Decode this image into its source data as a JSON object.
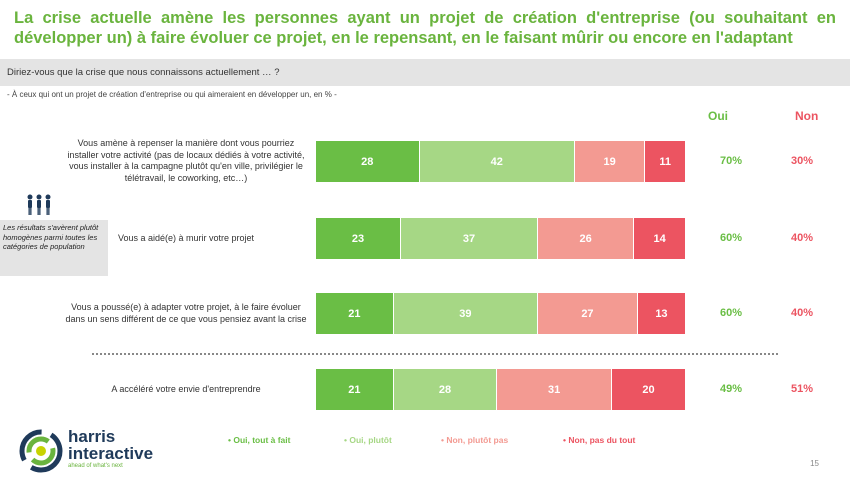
{
  "header": {
    "title": "La crise actuelle amène les personnes ayant un projet de création d'entreprise (ou souhaitant en développer un) à faire évoluer ce projet, en le repensant, en le faisant mûrir ou encore en l'adaptant",
    "question": "Diriez-vous que la crise que nous connaissons actuellement … ?",
    "subtitle": "- À ceux qui ont un projet de création d'entreprise ou qui aimeraient en développer un, en % -"
  },
  "columns": {
    "oui": "Oui",
    "non": "Non"
  },
  "side_note": "Les résultats s'avèrent plutôt homogènes parmi toutes les catégories de population",
  "colors": {
    "oui_tout": "#6abe45",
    "oui_plutot": "#a6d785",
    "non_plutot": "#f39a92",
    "non_tout": "#ec5461",
    "oui_text": "#6abe45",
    "non_text": "#ec5461"
  },
  "chart_data": {
    "type": "bar",
    "stacked": true,
    "orientation": "horizontal",
    "categories": [
      "Vous amène à repenser la manière dont vous pourriez installer votre activité (pas de locaux dédiés à votre activité, vous installer à la campagne plutôt qu'en ville, privilégier le télétravail, le coworking, etc…)",
      "Vous a aidé(e) à murir votre projet",
      "Vous a poussé(e) à adapter votre projet, à le faire évoluer dans un sens différent de ce que vous pensiez avant la crise",
      "A accéléré votre envie d'entreprendre"
    ],
    "series": [
      {
        "name": "Oui, tout à fait",
        "values": [
          28,
          23,
          21,
          21
        ]
      },
      {
        "name": "Oui, plutôt",
        "values": [
          42,
          37,
          39,
          28
        ]
      },
      {
        "name": "Non, plutôt pas",
        "values": [
          19,
          26,
          27,
          31
        ]
      },
      {
        "name": "Non, pas du tout",
        "values": [
          11,
          14,
          13,
          20
        ]
      }
    ],
    "totals_oui": [
      "70%",
      "60%",
      "60%",
      "49%"
    ],
    "totals_non": [
      "30%",
      "40%",
      "40%",
      "51%"
    ],
    "legend": [
      "• Oui, tout à fait",
      "• Oui, plutôt",
      "• Non, plutôt pas",
      "• Non, pas du tout"
    ]
  },
  "footer": {
    "logo_line1": "harris",
    "logo_line2": "interactive",
    "tagline": "ahead of what's next",
    "page": "15"
  }
}
